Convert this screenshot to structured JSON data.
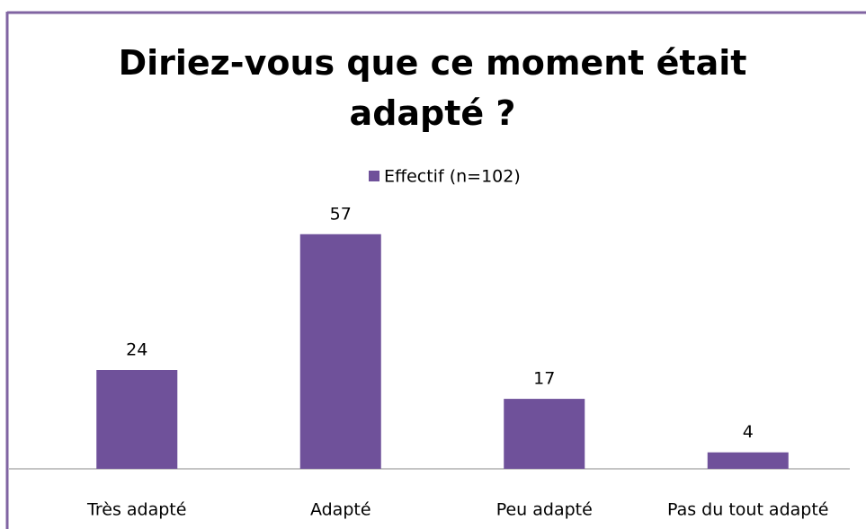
{
  "chart_data": {
    "type": "bar",
    "title": "Diriez-vous que ce moment était adapté ?",
    "categories": [
      "Très adapté",
      "Adapté",
      "Peu adapté",
      "Pas du tout adapté"
    ],
    "series": [
      {
        "name": "Effectif (n=102)",
        "color": "#6f519a",
        "values": [
          24,
          57,
          17,
          4
        ]
      }
    ],
    "ylim": [
      0,
      60
    ],
    "legend": "top"
  }
}
